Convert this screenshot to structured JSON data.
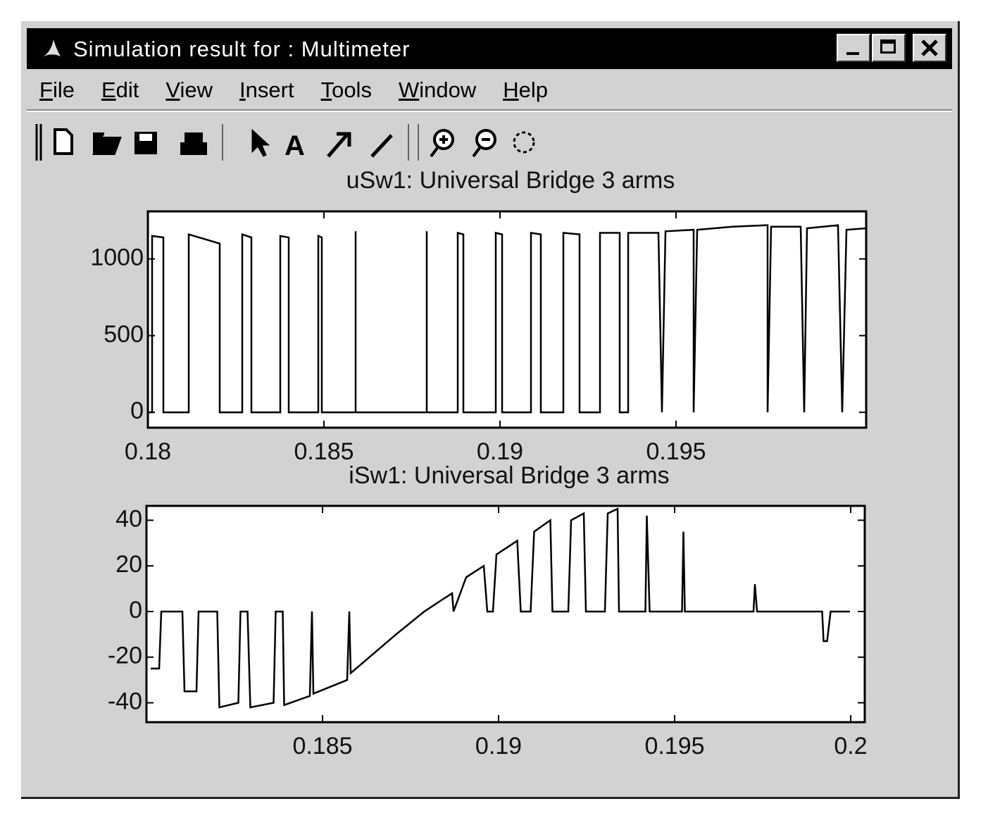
{
  "window": {
    "title": "Simulation result for : Multimeter",
    "menu": [
      "File",
      "Edit",
      "View",
      "Insert",
      "Tools",
      "Window",
      "Help"
    ]
  },
  "chart_data": [
    {
      "type": "line",
      "title": "uSw1: Universal Bridge 3 arms",
      "color": "#000000",
      "xlim": [
        0.18,
        0.2004
      ],
      "ylim": [
        -100,
        1310
      ],
      "xticks": [
        0.18,
        0.185,
        0.19,
        0.195
      ],
      "yticks": [
        0,
        500,
        1000
      ],
      "x": [
        0.18,
        0.18012,
        0.18012,
        0.18044,
        0.18044,
        0.18116,
        0.18116,
        0.18204,
        0.18204,
        0.18268,
        0.18268,
        0.18294,
        0.18294,
        0.18376,
        0.18376,
        0.184,
        0.184,
        0.18484,
        0.18484,
        0.18494,
        0.18494,
        0.1859,
        0.1859,
        0.1859,
        0.18792,
        0.18792,
        0.18792,
        0.1888,
        0.1888,
        0.18896,
        0.18896,
        0.18988,
        0.18988,
        0.19006,
        0.19006,
        0.19088,
        0.19088,
        0.19116,
        0.19116,
        0.1918,
        0.1918,
        0.19226,
        0.19226,
        0.19284,
        0.19284,
        0.1934,
        0.1934,
        0.19364,
        0.19364,
        0.1945,
        0.1946,
        0.1947,
        0.1955,
        0.1955,
        0.1956,
        0.1966,
        0.1976,
        0.1976,
        0.1977,
        0.19854,
        0.19864,
        0.19872,
        0.1996,
        0.19972,
        0.19984,
        0.2004
      ],
      "values": [
        0,
        0,
        1150,
        1140,
        0,
        0,
        1160,
        1100,
        0,
        0,
        1160,
        1140,
        0,
        0,
        1150,
        1140,
        0,
        0,
        1150,
        1140,
        0,
        0,
        1180,
        0,
        0,
        1180,
        0,
        0,
        1170,
        1160,
        0,
        0,
        1170,
        1160,
        0,
        0,
        1170,
        1160,
        0,
        0,
        1170,
        1160,
        0,
        0,
        1170,
        1170,
        0,
        0,
        1170,
        1170,
        0,
        1180,
        1190,
        0,
        1190,
        1210,
        1220,
        0,
        1210,
        1210,
        0,
        1200,
        1220,
        0,
        1190,
        1200
      ]
    },
    {
      "type": "line",
      "title": "iSw1: Universal Bridge 3 arms",
      "color": "#000000",
      "xlim": [
        0.18,
        0.2004
      ],
      "ylim": [
        -48.5,
        46.3
      ],
      "xticks": [
        0.185,
        0.19,
        0.195,
        0.2
      ],
      "yticks": [
        -40,
        -20,
        0,
        20,
        40
      ],
      "x": [
        0.18012,
        0.18036,
        0.18042,
        0.18102,
        0.18108,
        0.18142,
        0.18148,
        0.18201,
        0.18207,
        0.18261,
        0.18267,
        0.18287,
        0.18295,
        0.18361,
        0.18367,
        0.18387,
        0.18391,
        0.18464,
        0.1847,
        0.18474,
        0.1857,
        0.18576,
        0.1858,
        0.18709,
        0.18789,
        0.18838,
        0.18868,
        0.18872,
        0.18908,
        0.18958,
        0.18968,
        0.18984,
        0.18994,
        0.19053,
        0.19063,
        0.19091,
        0.19101,
        0.19147,
        0.19153,
        0.19198,
        0.19206,
        0.19242,
        0.19248,
        0.19302,
        0.1931,
        0.19338,
        0.19342,
        0.19417,
        0.19421,
        0.19429,
        0.19521,
        0.19525,
        0.19529,
        0.19724,
        0.19728,
        0.19734,
        0.19919,
        0.19923,
        0.19933,
        0.19943,
        0.19998
      ],
      "values": [
        -25,
        -25,
        0,
        0,
        -35,
        -35,
        0,
        0,
        -42,
        -40,
        0,
        0,
        -42,
        -40,
        0,
        0,
        -41,
        -37,
        0,
        -36,
        -30,
        0,
        -27,
        -10,
        0,
        5,
        8,
        0,
        15,
        20,
        0,
        0,
        25,
        31,
        0,
        0,
        35,
        40,
        0,
        0,
        40,
        43,
        0,
        0,
        43,
        45,
        0,
        0,
        42,
        0,
        0,
        35,
        0,
        0,
        12,
        0,
        0,
        -13,
        -13,
        0,
        0
      ]
    }
  ]
}
